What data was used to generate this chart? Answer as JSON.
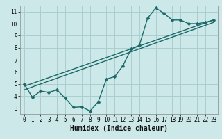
{
  "title": "",
  "xlabel": "Humidex (Indice chaleur)",
  "bg_color": "#cce8e8",
  "grid_color": "#aacece",
  "line_color": "#1a6868",
  "xlim": [
    -0.5,
    23.5
  ],
  "ylim": [
    2.5,
    11.5
  ],
  "xticks": [
    0,
    1,
    2,
    3,
    4,
    5,
    6,
    7,
    8,
    9,
    10,
    11,
    12,
    13,
    14,
    15,
    16,
    17,
    18,
    19,
    20,
    21,
    22,
    23
  ],
  "yticks": [
    3,
    4,
    5,
    6,
    7,
    8,
    9,
    10,
    11
  ],
  "line1_x": [
    0,
    1,
    2,
    3,
    4,
    5,
    6,
    7,
    8,
    9,
    10,
    11,
    12,
    13,
    14,
    15,
    16,
    17,
    18,
    19,
    20,
    21,
    22,
    23
  ],
  "line1_y": [
    5.0,
    3.9,
    4.4,
    4.3,
    4.5,
    3.8,
    3.05,
    3.1,
    2.75,
    3.5,
    5.4,
    5.6,
    6.5,
    7.9,
    8.2,
    10.45,
    11.3,
    10.85,
    10.3,
    10.3,
    10.0,
    10.0,
    10.1,
    10.3
  ],
  "line2_x": [
    0,
    23
  ],
  "line2_y": [
    4.8,
    10.3
  ],
  "line3_x": [
    0,
    23
  ],
  "line3_y": [
    4.5,
    10.1
  ],
  "marker_size": 2.5,
  "line_width": 1.0,
  "xlabel_fontsize": 7
}
